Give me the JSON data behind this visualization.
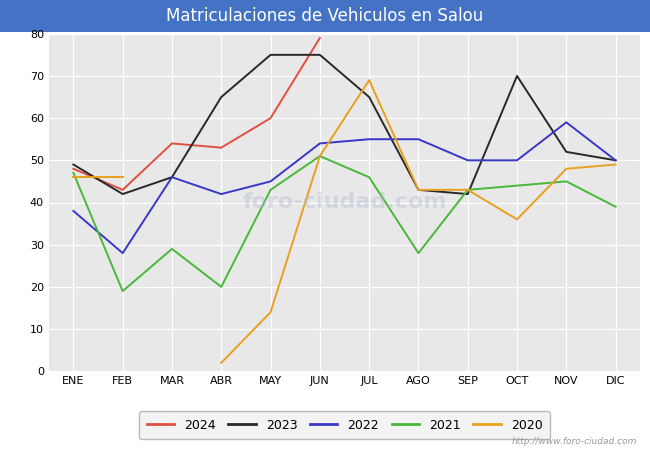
{
  "title": "Matriculaciones de Vehiculos en Salou",
  "title_bg_color": "#4472c4",
  "title_text_color": "#ffffff",
  "months": [
    "ENE",
    "FEB",
    "MAR",
    "ABR",
    "MAY",
    "JUN",
    "JUL",
    "AGO",
    "SEP",
    "OCT",
    "NOV",
    "DIC"
  ],
  "series": {
    "2024": [
      48,
      43,
      54,
      53,
      60,
      79,
      null,
      null,
      null,
      null,
      null,
      null
    ],
    "2023": [
      49,
      42,
      46,
      65,
      75,
      75,
      65,
      43,
      42,
      70,
      52,
      50
    ],
    "2022": [
      38,
      28,
      46,
      42,
      45,
      54,
      55,
      55,
      50,
      50,
      59,
      50
    ],
    "2021": [
      47,
      19,
      29,
      20,
      43,
      51,
      46,
      28,
      43,
      44,
      45,
      39
    ],
    "2020": [
      46,
      46,
      null,
      2,
      14,
      51,
      69,
      43,
      43,
      36,
      48,
      49
    ]
  },
  "colors": {
    "2024": "#e05040",
    "2023": "#282828",
    "2022": "#3838c8",
    "2021": "#48b838",
    "2020": "#e8a020"
  },
  "ylim": [
    0,
    80
  ],
  "yticks": [
    0,
    10,
    20,
    30,
    40,
    50,
    60,
    70,
    80
  ],
  "watermark": "http://www.foro-ciudad.com",
  "plot_bg_color": "#e8e8e8",
  "grid_color": "#ffffff",
  "fig_bg_color": "#ffffff",
  "title_fontsize": 12,
  "tick_fontsize": 8
}
